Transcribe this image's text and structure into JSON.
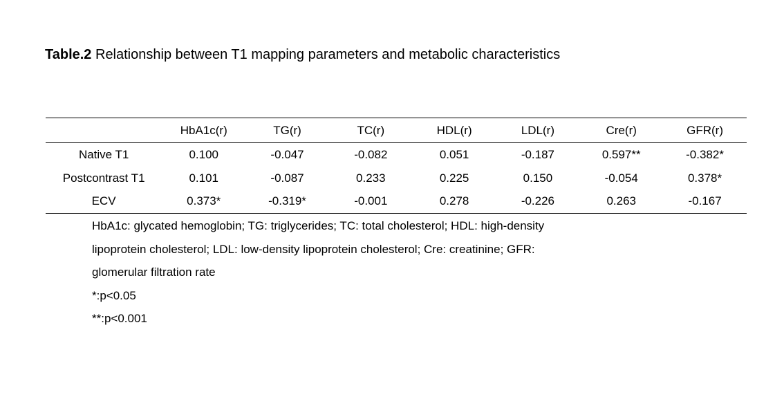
{
  "page": {
    "background_color": "#ffffff",
    "text_color": "#000000"
  },
  "title": {
    "bold": "Table.2",
    "rest": " Relationship between T1 mapping parameters and metabolic characteristics"
  },
  "table": {
    "columns": [
      "",
      "HbA1c(r)",
      "TG(r)",
      "TC(r)",
      "HDL(r)",
      "LDL(r)",
      "Cre(r)",
      "GFR(r)"
    ],
    "rows": [
      {
        "label": "Native T1",
        "values": [
          "0.100",
          "-0.047",
          "-0.082",
          "0.051",
          "-0.187",
          "0.597**",
          "-0.382*"
        ]
      },
      {
        "label": "Postcontrast T1",
        "values": [
          "0.101",
          "-0.087",
          "0.233",
          "0.225",
          "0.150",
          "-0.054",
          "0.378*"
        ]
      },
      {
        "label": "ECV",
        "values": [
          "0.373*",
          "-0.319*",
          "-0.001",
          "0.278",
          "-0.226",
          "0.263",
          "-0.167"
        ]
      }
    ]
  },
  "footnotes": {
    "lines": [
      "HbA1c: glycated hemoglobin; TG: triglycerides; TC: total cholesterol; HDL: high-density",
      "lipoprotein cholesterol; LDL: low-density lipoprotein cholesterol; Cre: creatinine; GFR:",
      "glomerular filtration rate",
      "*:p<0.05",
      "**:p<0.001"
    ]
  }
}
